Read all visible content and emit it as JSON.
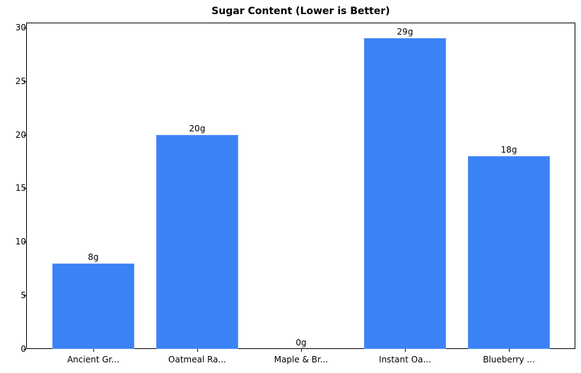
{
  "chart_data": {
    "type": "bar",
    "title": "Sugar Content (Lower is Better)",
    "categories": [
      "Ancient Gr...",
      "Oatmeal Ra...",
      "Maple & Br...",
      "Instant Oa...",
      "Blueberry ..."
    ],
    "values": [
      8,
      20,
      0,
      29,
      18
    ],
    "data_labels": [
      "8g",
      "20g",
      "0g",
      "29g",
      "18g"
    ],
    "xlabel": "",
    "ylabel": "",
    "ylim": [
      0,
      30.45
    ],
    "yticks": [
      0,
      5,
      10,
      15,
      20,
      25,
      30
    ],
    "grid": false,
    "bar_color": "#3b82f6"
  }
}
